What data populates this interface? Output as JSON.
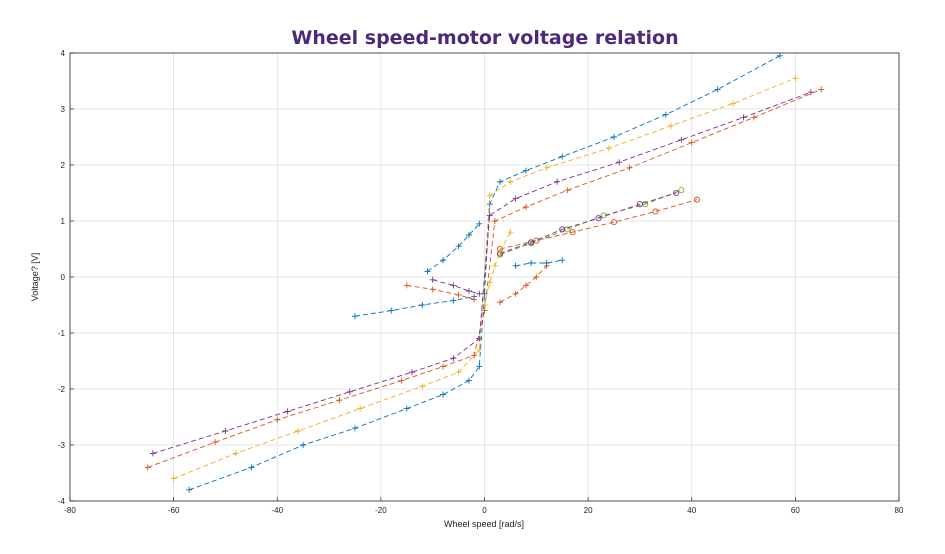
{
  "chart_data": {
    "type": "scatter",
    "title": "Wheel speed-motor voltage relation",
    "xlabel": "Wheel speed [rad/s]",
    "ylabel": "Voltage? [V]",
    "xlim": [
      -80,
      80
    ],
    "ylim": [
      -4,
      4
    ],
    "xticks": [
      -80,
      -60,
      -40,
      -20,
      0,
      20,
      40,
      60,
      80
    ],
    "yticks": [
      -4,
      -3,
      -2,
      -1,
      0,
      1,
      2,
      3,
      4
    ],
    "grid": true,
    "legend": "none",
    "series": [
      {
        "color": "#0072bd",
        "marker": "+",
        "line": "dashed",
        "x": [
          -57,
          -45,
          -35,
          -25,
          -15,
          -8,
          -3,
          -1,
          0,
          1,
          3,
          8,
          15,
          25,
          35,
          45,
          57
        ],
        "y": [
          -3.8,
          -3.4,
          -3.0,
          -2.7,
          -2.35,
          -2.1,
          -1.85,
          -1.6,
          -0.3,
          1.3,
          1.7,
          1.9,
          2.15,
          2.5,
          2.9,
          3.35,
          3.95
        ]
      },
      {
        "color": "#d95319",
        "marker": "+",
        "line": "dashed",
        "x": [
          -65,
          -52,
          -40,
          -28,
          -16,
          -8,
          -2,
          0,
          2,
          8,
          16,
          28,
          40,
          52,
          65
        ],
        "y": [
          -3.4,
          -2.95,
          -2.55,
          -2.2,
          -1.85,
          -1.6,
          -1.4,
          -0.6,
          1.0,
          1.25,
          1.55,
          1.95,
          2.4,
          2.85,
          3.35
        ]
      },
      {
        "color": "#edb120",
        "marker": "+",
        "line": "dashed",
        "x": [
          -60,
          -48,
          -36,
          -24,
          -12,
          -5,
          -1,
          1,
          5,
          12,
          24,
          36,
          48,
          60
        ],
        "y": [
          -3.6,
          -3.15,
          -2.75,
          -2.35,
          -1.95,
          -1.7,
          -1.3,
          1.45,
          1.7,
          1.95,
          2.3,
          2.7,
          3.1,
          3.55
        ]
      },
      {
        "color": "#7e2f8e",
        "marker": "+",
        "line": "dashed",
        "x": [
          -64,
          -50,
          -38,
          -26,
          -14,
          -6,
          -1,
          1,
          6,
          14,
          26,
          38,
          50,
          63
        ],
        "y": [
          -3.15,
          -2.75,
          -2.4,
          -2.05,
          -1.7,
          -1.45,
          -1.1,
          1.1,
          1.4,
          1.7,
          2.05,
          2.45,
          2.85,
          3.3
        ]
      },
      {
        "color": "#d95319",
        "marker": "o",
        "line": "dashed",
        "x": [
          3,
          10,
          17,
          25,
          33,
          41
        ],
        "y": [
          0.5,
          0.65,
          0.8,
          0.98,
          1.17,
          1.38
        ]
      },
      {
        "color": "#77ac30",
        "marker": "o",
        "line": "dashed",
        "x": [
          3,
          9,
          16,
          23,
          31,
          38
        ],
        "y": [
          0.4,
          0.6,
          0.85,
          1.1,
          1.3,
          1.55
        ]
      },
      {
        "color": "#7e2f8e",
        "marker": "o",
        "line": "dashed",
        "x": [
          3,
          9,
          15,
          22,
          30,
          37
        ],
        "y": [
          0.42,
          0.62,
          0.85,
          1.05,
          1.3,
          1.5
        ]
      },
      {
        "color": "#0072bd",
        "marker": "+",
        "line": "dashed",
        "x": [
          -11,
          -8,
          -5,
          -3,
          -1
        ],
        "y": [
          0.1,
          0.3,
          0.55,
          0.75,
          0.95
        ]
      },
      {
        "color": "#0072bd",
        "marker": "+",
        "line": "dashed",
        "x": [
          -25,
          -18,
          -12,
          -6,
          -2
        ],
        "y": [
          -0.7,
          -0.6,
          -0.5,
          -0.42,
          -0.35
        ]
      },
      {
        "color": "#d95319",
        "marker": "+",
        "line": "dashed",
        "x": [
          -15,
          -10,
          -5,
          -2
        ],
        "y": [
          -0.15,
          -0.22,
          -0.32,
          -0.4
        ]
      },
      {
        "color": "#7e2f8e",
        "marker": "+",
        "line": "dashed",
        "x": [
          -10,
          -6,
          -3,
          -1
        ],
        "y": [
          -0.05,
          -0.15,
          -0.25,
          -0.3
        ]
      },
      {
        "color": "#d95319",
        "marker": "+",
        "line": "dashed",
        "x": [
          3,
          6,
          8,
          10,
          12
        ],
        "y": [
          -0.45,
          -0.3,
          -0.15,
          0.0,
          0.2
        ]
      },
      {
        "color": "#0072bd",
        "marker": "+",
        "line": "dashed",
        "x": [
          6,
          9,
          12,
          15
        ],
        "y": [
          0.2,
          0.25,
          0.25,
          0.3
        ]
      },
      {
        "color": "#edb120",
        "marker": "+",
        "line": "dashed",
        "x": [
          0,
          1,
          2,
          3,
          5
        ],
        "y": [
          -0.5,
          -0.1,
          0.2,
          0.45,
          0.8
        ]
      }
    ]
  }
}
